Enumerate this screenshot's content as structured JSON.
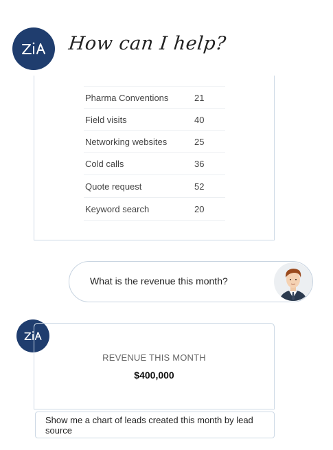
{
  "header": {
    "title": "How can I help?",
    "assistant_logo": "zia-logo"
  },
  "leads_table": {
    "rows": [
      {
        "source": "Pharma Conventions",
        "count": "21"
      },
      {
        "source": "Field visits",
        "count": "40"
      },
      {
        "source": "Networking websites",
        "count": "25"
      },
      {
        "source": "Cold calls",
        "count": "36"
      },
      {
        "source": "Quote request",
        "count": "52"
      },
      {
        "source": "Keyword search",
        "count": "20"
      }
    ]
  },
  "user_message": {
    "text": "What is the revenue this month?",
    "avatar": "user-avatar-man-in-suit"
  },
  "revenue_card": {
    "label": "REVENUE THIS MONTH",
    "value": "$400,000"
  },
  "prompt_suggestion": {
    "text": "Show me a chart of leads created this month by lead source"
  },
  "colors": {
    "brand_navy": "#1f3d6e",
    "border": "#cdd9e5"
  }
}
